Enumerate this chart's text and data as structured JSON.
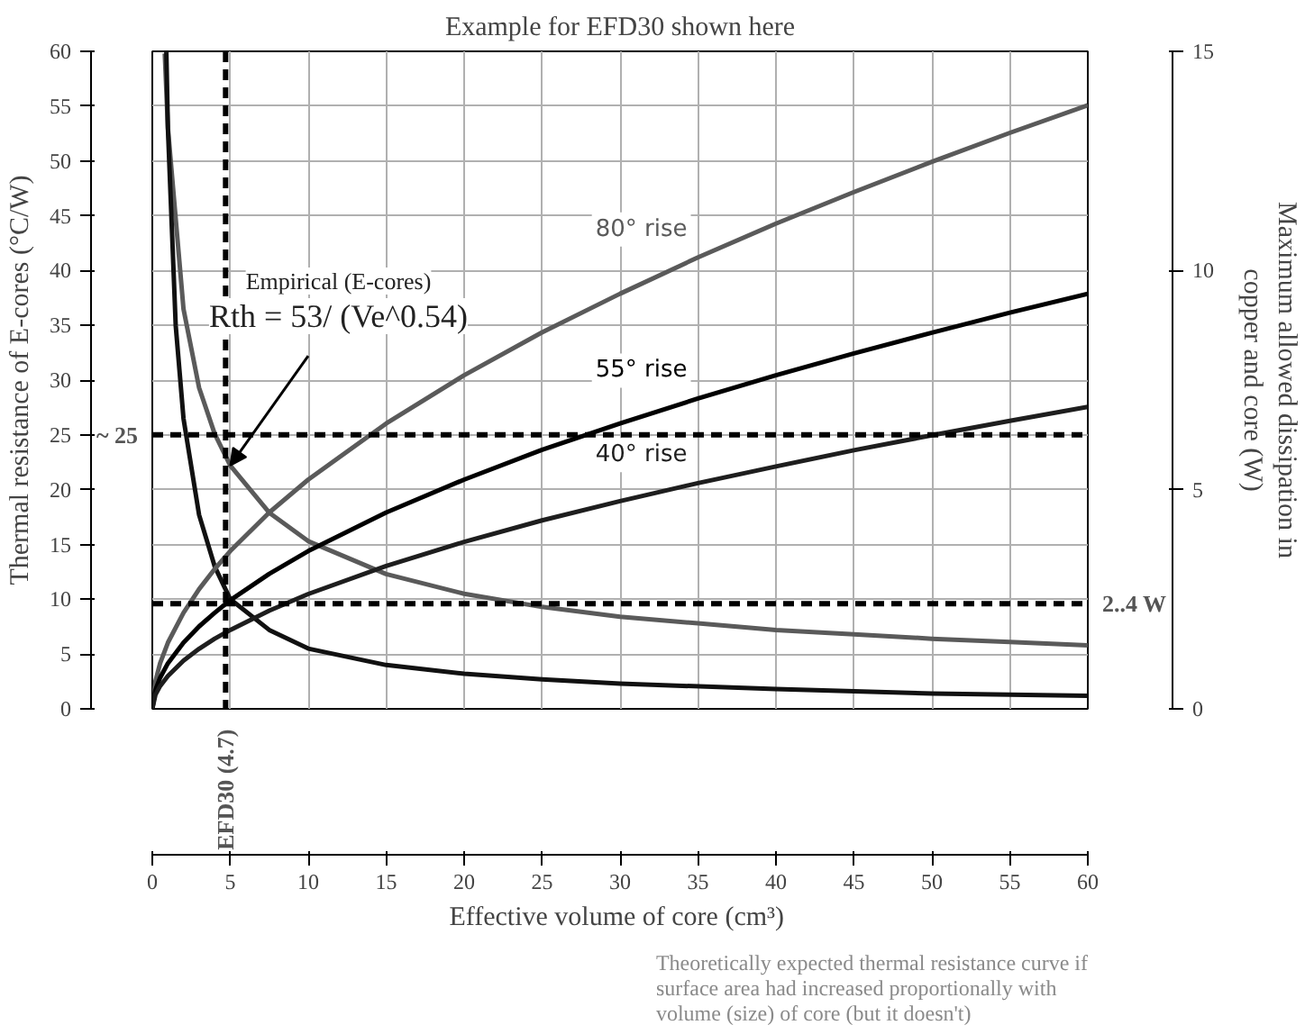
{
  "chart_data": {
    "type": "line",
    "title": "Example for EFD30 shown here",
    "xlabel": "Effective volume of core  (cm³)",
    "ylabel": "Thermal resistance of E-cores (°C/W)",
    "y2label": "Maximum allowed dissipation in copper and core (W)",
    "xlim": [
      0,
      60
    ],
    "xticks": [
      0,
      5,
      10,
      15,
      20,
      25,
      30,
      35,
      40,
      45,
      50,
      55,
      60
    ],
    "ylim": [
      0,
      60
    ],
    "yticks": [
      0,
      5,
      10,
      15,
      20,
      25,
      30,
      35,
      40,
      45,
      50,
      55,
      60
    ],
    "y2lim": [
      0,
      15
    ],
    "y2ticks": [
      0,
      5,
      10,
      15
    ],
    "grid": true,
    "legend": false,
    "marker": "none",
    "line_style": "solid",
    "series": [
      {
        "color": "#5a5a5a",
        "x": [
          0.8,
          1,
          2,
          3,
          4,
          5,
          7.5,
          10,
          15,
          20,
          25,
          30,
          35,
          40,
          45,
          50,
          55,
          60
        ],
        "values": [
          59.8,
          53,
          36.5,
          29.3,
          25.1,
          22.2,
          17.9,
          15.3,
          12.3,
          10.5,
          9.3,
          8.4,
          7.8,
          7.2,
          6.8,
          6.4,
          6.1,
          5.8
        ]
      },
      {
        "color": "#111111",
        "x": [
          0.9,
          1,
          1.5,
          2,
          3,
          4,
          5,
          7.5,
          10,
          15,
          20,
          25,
          30,
          40,
          50,
          60
        ],
        "values": [
          60,
          53,
          35,
          26.5,
          17.7,
          13,
          10,
          7.2,
          5.5,
          4,
          3.2,
          2.7,
          2.3,
          1.8,
          1.4,
          1.2
        ]
      },
      {
        "name": "80° rise",
        "axis": "y2",
        "color": "#5a5a5a",
        "x": [
          0,
          0.2,
          0.5,
          1,
          2,
          3,
          4,
          5,
          7.5,
          10,
          15,
          20,
          25,
          30,
          35,
          40,
          45,
          50,
          55,
          60
        ],
        "values": [
          0,
          0.63,
          1.04,
          1.51,
          2.19,
          2.73,
          3.19,
          3.6,
          4.48,
          5.23,
          6.51,
          7.61,
          8.59,
          9.47,
          10.3,
          11.07,
          11.79,
          12.48,
          13.14,
          13.77
        ]
      },
      {
        "name": "55° rise",
        "axis": "y2",
        "color": "#000000",
        "x": [
          0,
          0.2,
          0.5,
          1,
          2,
          3,
          4,
          5,
          7.5,
          10,
          15,
          20,
          25,
          30,
          35,
          40,
          45,
          50,
          55,
          60
        ],
        "values": [
          0,
          0.43,
          0.71,
          1.04,
          1.51,
          1.88,
          2.19,
          2.48,
          3.08,
          3.6,
          4.48,
          5.23,
          5.91,
          6.51,
          7.08,
          7.61,
          8.11,
          8.58,
          9.04,
          9.47
        ]
      },
      {
        "name": "40° rise",
        "axis": "y2",
        "color": "#1e1e1e",
        "x": [
          0,
          0.2,
          0.5,
          1,
          2,
          3,
          4,
          5,
          7.5,
          10,
          15,
          20,
          25,
          30,
          35,
          40,
          45,
          50,
          55,
          60
        ],
        "values": [
          0,
          0.32,
          0.52,
          0.75,
          1.1,
          1.37,
          1.6,
          1.8,
          2.24,
          2.62,
          3.26,
          3.81,
          4.3,
          4.74,
          5.15,
          5.53,
          5.9,
          6.24,
          6.57,
          6.89
        ]
      }
    ],
    "ref_lines": [
      {
        "axis": "x",
        "value": 4.7,
        "label": "EFD30  (4.7)",
        "color": "#000000",
        "line_style": "dashed"
      },
      {
        "axis": "y",
        "value": 25,
        "label": "~ 25",
        "color": "#000000",
        "line_style": "dashed"
      },
      {
        "axis": "y2",
        "value": 2.4,
        "label": "2..4 W",
        "color": "#000000",
        "line_style": "dashed"
      }
    ],
    "annotations": [
      {
        "text": "Empirical (E-cores)\nRth = 53/ (Ve^0.54)",
        "x": 5,
        "y": 22.2
      },
      "Theoretically expected thermal resistance curve if surface area had increased proportionally with volume (size) of core (but it doesn't)"
    ]
  }
}
